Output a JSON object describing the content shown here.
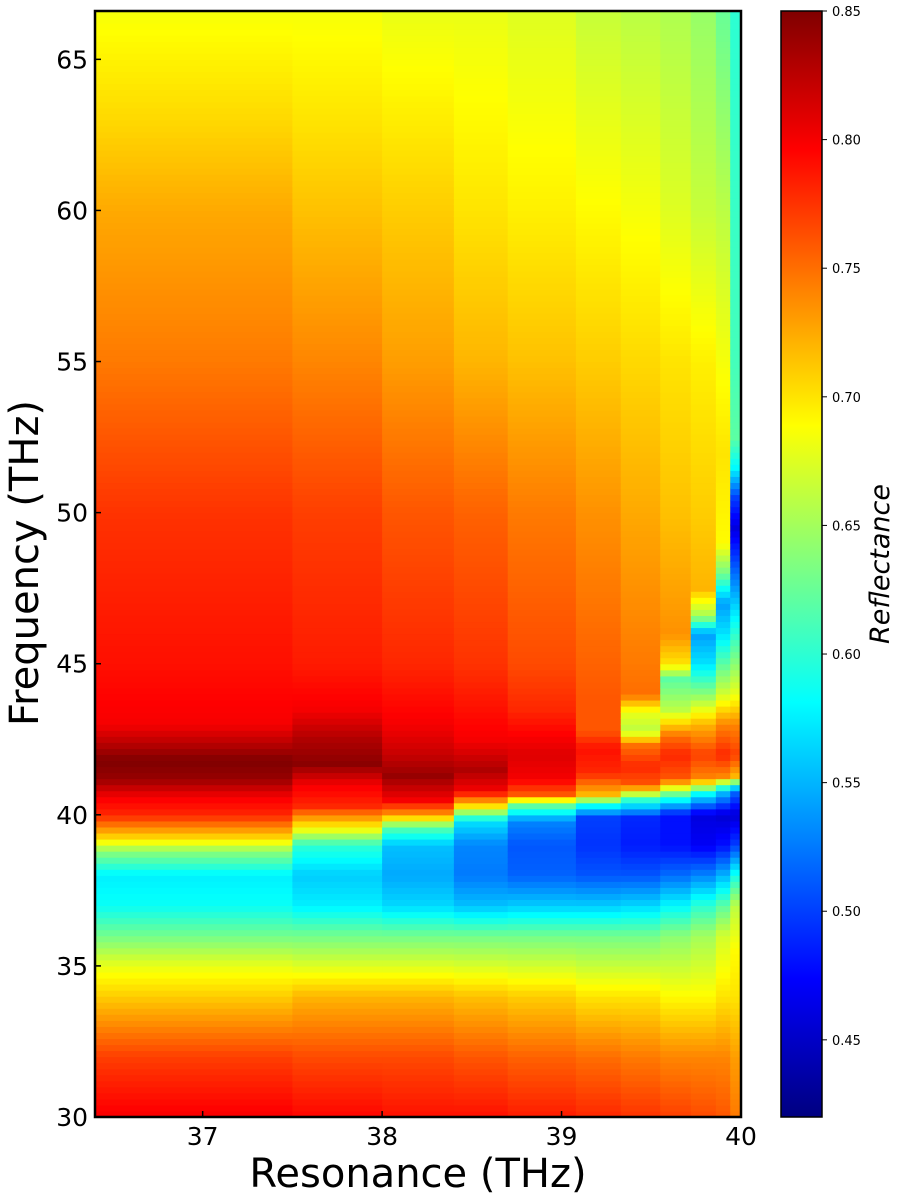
{
  "chart_data": {
    "type": "heatmap",
    "xlabel": "Resonance (THz)",
    "ylabel": "Frequency (THz)",
    "xlim": [
      36.4,
      40.0
    ],
    "ylim": [
      30,
      66.6
    ],
    "x_ticks": [
      "37",
      "38",
      "39",
      "40"
    ],
    "x_tick_values": [
      37,
      38,
      39,
      40
    ],
    "y_ticks": [
      "30",
      "35",
      "40",
      "45",
      "50",
      "55",
      "60",
      "65"
    ],
    "y_tick_values": [
      30,
      35,
      40,
      45,
      50,
      55,
      60,
      65
    ],
    "colorbar": {
      "label": "Reflectance",
      "range": [
        0.42,
        0.85
      ],
      "ticks": [
        "0.45",
        "0.50",
        "0.55",
        "0.60",
        "0.65",
        "0.70",
        "0.75",
        "0.80",
        "0.85"
      ],
      "tick_values": [
        0.45,
        0.5,
        0.55,
        0.6,
        0.65,
        0.7,
        0.75,
        0.8,
        0.85
      ],
      "colormap": "jet"
    },
    "columns": [
      {
        "x0": 36.4,
        "x1": 37.5,
        "keys": [
          [
            30,
            0.8
          ],
          [
            32,
            0.77
          ],
          [
            34,
            0.71
          ],
          [
            35,
            0.68
          ],
          [
            36,
            0.63
          ],
          [
            37,
            0.585
          ],
          [
            38,
            0.575
          ],
          [
            38.8,
            0.64
          ],
          [
            39.2,
            0.7
          ],
          [
            40,
            0.78
          ],
          [
            40.6,
            0.8
          ],
          [
            41.2,
            0.84
          ],
          [
            41.8,
            0.85
          ],
          [
            43,
            0.8
          ],
          [
            45,
            0.79
          ],
          [
            50,
            0.775
          ],
          [
            55,
            0.745
          ],
          [
            60,
            0.725
          ],
          [
            63,
            0.705
          ],
          [
            66.6,
            0.685
          ]
        ]
      },
      {
        "x0": 37.5,
        "x1": 38.0,
        "keys": [
          [
            30,
            0.795
          ],
          [
            32,
            0.765
          ],
          [
            34,
            0.72
          ],
          [
            36,
            0.63
          ],
          [
            37,
            0.575
          ],
          [
            38,
            0.56
          ],
          [
            39,
            0.6
          ],
          [
            39.5,
            0.68
          ],
          [
            40.3,
            0.78
          ],
          [
            41,
            0.8
          ],
          [
            41.7,
            0.845
          ],
          [
            42.5,
            0.83
          ],
          [
            43.5,
            0.8
          ],
          [
            45,
            0.785
          ],
          [
            50,
            0.77
          ],
          [
            55,
            0.74
          ],
          [
            60,
            0.715
          ],
          [
            63,
            0.7
          ],
          [
            66.6,
            0.685
          ]
        ]
      },
      {
        "x0": 38.0,
        "x1": 38.4,
        "keys": [
          [
            30,
            0.79
          ],
          [
            32,
            0.765
          ],
          [
            34,
            0.72
          ],
          [
            36,
            0.63
          ],
          [
            37,
            0.565
          ],
          [
            38,
            0.545
          ],
          [
            39,
            0.555
          ],
          [
            39.6,
            0.62
          ],
          [
            40,
            0.73
          ],
          [
            40.5,
            0.8
          ],
          [
            41.3,
            0.84
          ],
          [
            42,
            0.82
          ],
          [
            43,
            0.8
          ],
          [
            45,
            0.78
          ],
          [
            50,
            0.76
          ],
          [
            55,
            0.73
          ],
          [
            60,
            0.71
          ],
          [
            66.6,
            0.68
          ]
        ]
      },
      {
        "x0": 38.4,
        "x1": 38.7,
        "keys": [
          [
            30,
            0.79
          ],
          [
            32,
            0.76
          ],
          [
            34,
            0.715
          ],
          [
            36,
            0.63
          ],
          [
            37,
            0.555
          ],
          [
            38,
            0.525
          ],
          [
            39,
            0.53
          ],
          [
            39.8,
            0.57
          ],
          [
            40.3,
            0.7
          ],
          [
            40.8,
            0.8
          ],
          [
            41.5,
            0.83
          ],
          [
            42.5,
            0.8
          ],
          [
            45,
            0.775
          ],
          [
            50,
            0.755
          ],
          [
            55,
            0.72
          ],
          [
            60,
            0.7
          ],
          [
            66.6,
            0.68
          ]
        ]
      },
      {
        "x0": 38.7,
        "x1": 39.08,
        "keys": [
          [
            30,
            0.785
          ],
          [
            32,
            0.755
          ],
          [
            34,
            0.71
          ],
          [
            36,
            0.63
          ],
          [
            37,
            0.56
          ],
          [
            38,
            0.515
          ],
          [
            39,
            0.51
          ],
          [
            39.8,
            0.53
          ],
          [
            40.3,
            0.62
          ],
          [
            40.7,
            0.76
          ],
          [
            41.2,
            0.8
          ],
          [
            42,
            0.81
          ],
          [
            43.5,
            0.78
          ],
          [
            45,
            0.765
          ],
          [
            50,
            0.745
          ],
          [
            55,
            0.715
          ],
          [
            60,
            0.695
          ],
          [
            66.6,
            0.675
          ]
        ]
      },
      {
        "x0": 39.08,
        "x1": 39.33,
        "keys": [
          [
            30,
            0.78
          ],
          [
            32,
            0.75
          ],
          [
            34,
            0.7
          ],
          [
            36,
            0.63
          ],
          [
            37,
            0.56
          ],
          [
            38,
            0.51
          ],
          [
            39,
            0.495
          ],
          [
            39.9,
            0.5
          ],
          [
            40.3,
            0.58
          ],
          [
            40.7,
            0.72
          ],
          [
            41.4,
            0.78
          ],
          [
            42.2,
            0.79
          ],
          [
            42.8,
            0.76
          ],
          [
            43.8,
            0.76
          ],
          [
            45,
            0.755
          ],
          [
            50,
            0.735
          ],
          [
            55,
            0.71
          ],
          [
            60,
            0.69
          ],
          [
            66.6,
            0.665
          ]
        ]
      },
      {
        "x0": 39.33,
        "x1": 39.55,
        "keys": [
          [
            30,
            0.775
          ],
          [
            32,
            0.745
          ],
          [
            34,
            0.7
          ],
          [
            36,
            0.63
          ],
          [
            37,
            0.565
          ],
          [
            38,
            0.51
          ],
          [
            39,
            0.485
          ],
          [
            39.9,
            0.49
          ],
          [
            40.5,
            0.6
          ],
          [
            41,
            0.76
          ],
          [
            41.6,
            0.78
          ],
          [
            42.3,
            0.75
          ],
          [
            42.8,
            0.66
          ],
          [
            43.4,
            0.68
          ],
          [
            44,
            0.75
          ],
          [
            45,
            0.745
          ],
          [
            50,
            0.725
          ],
          [
            55,
            0.705
          ],
          [
            60,
            0.685
          ],
          [
            66.6,
            0.66
          ]
        ]
      },
      {
        "x0": 39.55,
        "x1": 39.72,
        "keys": [
          [
            30,
            0.77
          ],
          [
            32,
            0.74
          ],
          [
            34,
            0.69
          ],
          [
            36,
            0.64
          ],
          [
            37,
            0.58
          ],
          [
            38,
            0.52
          ],
          [
            39,
            0.48
          ],
          [
            40,
            0.48
          ],
          [
            40.6,
            0.6
          ],
          [
            41.2,
            0.76
          ],
          [
            42,
            0.78
          ],
          [
            42.6,
            0.75
          ],
          [
            43.5,
            0.66
          ],
          [
            44.5,
            0.62
          ],
          [
            45,
            0.7
          ],
          [
            46,
            0.735
          ],
          [
            50,
            0.715
          ],
          [
            55,
            0.7
          ],
          [
            60,
            0.675
          ],
          [
            66.6,
            0.655
          ]
        ]
      },
      {
        "x0": 39.72,
        "x1": 39.86,
        "keys": [
          [
            30,
            0.765
          ],
          [
            32,
            0.74
          ],
          [
            34,
            0.69
          ],
          [
            36,
            0.65
          ],
          [
            37,
            0.6
          ],
          [
            38,
            0.53
          ],
          [
            39,
            0.47
          ],
          [
            40,
            0.46
          ],
          [
            40.7,
            0.58
          ],
          [
            41.2,
            0.74
          ],
          [
            42,
            0.77
          ],
          [
            43,
            0.72
          ],
          [
            44,
            0.64
          ],
          [
            45,
            0.57
          ],
          [
            46,
            0.54
          ],
          [
            46.6,
            0.65
          ],
          [
            47.5,
            0.72
          ],
          [
            50,
            0.71
          ],
          [
            55,
            0.695
          ],
          [
            60,
            0.665
          ],
          [
            66.6,
            0.645
          ]
        ]
      },
      {
        "x0": 39.86,
        "x1": 39.94,
        "keys": [
          [
            30,
            0.76
          ],
          [
            32,
            0.74
          ],
          [
            34,
            0.7
          ],
          [
            36,
            0.67
          ],
          [
            37,
            0.62
          ],
          [
            38,
            0.55
          ],
          [
            39,
            0.48
          ],
          [
            40,
            0.455
          ],
          [
            40.8,
            0.56
          ],
          [
            41.3,
            0.74
          ],
          [
            42,
            0.78
          ],
          [
            43,
            0.74
          ],
          [
            44,
            0.67
          ],
          [
            45,
            0.62
          ],
          [
            46,
            0.57
          ],
          [
            47,
            0.54
          ],
          [
            48,
            0.63
          ],
          [
            49,
            0.69
          ],
          [
            52,
            0.7
          ],
          [
            55,
            0.685
          ],
          [
            60,
            0.66
          ],
          [
            66.6,
            0.625
          ]
        ]
      },
      {
        "x0": 39.94,
        "x1": 40.0,
        "keys": [
          [
            30,
            0.745
          ],
          [
            32,
            0.73
          ],
          [
            34,
            0.7
          ],
          [
            35.5,
            0.69
          ],
          [
            37,
            0.66
          ],
          [
            38,
            0.59
          ],
          [
            39,
            0.5
          ],
          [
            40,
            0.455
          ],
          [
            40.8,
            0.52
          ],
          [
            41.3,
            0.72
          ],
          [
            42,
            0.77
          ],
          [
            43,
            0.74
          ],
          [
            44,
            0.68
          ],
          [
            45,
            0.64
          ],
          [
            46,
            0.6
          ],
          [
            47,
            0.56
          ],
          [
            48,
            0.52
          ],
          [
            49.5,
            0.46
          ],
          [
            50.5,
            0.5
          ],
          [
            51.5,
            0.58
          ],
          [
            52.5,
            0.62
          ],
          [
            55,
            0.61
          ],
          [
            60,
            0.605
          ],
          [
            66.6,
            0.6
          ]
        ]
      }
    ]
  }
}
